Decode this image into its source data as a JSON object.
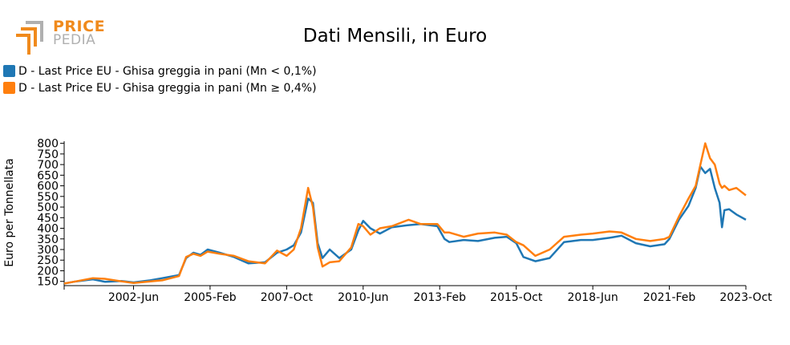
{
  "logo": {
    "line1": "PRICE",
    "line2": "PEDIA"
  },
  "colors": {
    "series1": "#1f77b4",
    "series2": "#ff7f0e",
    "logo_orange": "#f08a1c",
    "logo_grey": "#b0b0b0"
  },
  "chart_data": {
    "type": "line",
    "title": "Dati Mensili, in Euro",
    "xlabel": "",
    "ylabel": "Euro per Tonnellata",
    "ylim": [
      130,
      810
    ],
    "yticks": [
      150,
      200,
      250,
      300,
      350,
      400,
      450,
      500,
      550,
      600,
      650,
      700,
      750,
      800
    ],
    "xlim": [
      "2000-01",
      "2023-10"
    ],
    "xticks": [
      "2002-Jun",
      "2005-Feb",
      "2007-Oct",
      "2010-Jun",
      "2013-Feb",
      "2015-Oct",
      "2018-Jun",
      "2021-Feb",
      "2023-Oct"
    ],
    "grid": false,
    "legend_position": "top-left",
    "series": [
      {
        "name": "D - Last Price EU - Ghisa greggia in pani (Mn < 0,1%)",
        "points": [
          [
            "2000-01",
            140
          ],
          [
            "2000-06",
            150
          ],
          [
            "2001-01",
            160
          ],
          [
            "2001-06",
            148
          ],
          [
            "2002-01",
            152
          ],
          [
            "2002-06",
            145
          ],
          [
            "2003-01",
            155
          ],
          [
            "2003-06",
            165
          ],
          [
            "2004-01",
            180
          ],
          [
            "2004-04",
            260
          ],
          [
            "2004-07",
            285
          ],
          [
            "2004-10",
            275
          ],
          [
            "2005-01",
            300
          ],
          [
            "2005-06",
            285
          ],
          [
            "2005-12",
            265
          ],
          [
            "2006-06",
            235
          ],
          [
            "2007-01",
            240
          ],
          [
            "2007-06",
            285
          ],
          [
            "2007-10",
            300
          ],
          [
            "2008-01",
            320
          ],
          [
            "2008-04",
            380
          ],
          [
            "2008-07",
            540
          ],
          [
            "2008-09",
            520
          ],
          [
            "2008-11",
            330
          ],
          [
            "2009-01",
            260
          ],
          [
            "2009-04",
            300
          ],
          [
            "2009-08",
            260
          ],
          [
            "2010-01",
            300
          ],
          [
            "2010-04",
            390
          ],
          [
            "2010-06",
            435
          ],
          [
            "2010-09",
            400
          ],
          [
            "2011-01",
            375
          ],
          [
            "2011-06",
            405
          ],
          [
            "2012-01",
            415
          ],
          [
            "2012-06",
            420
          ],
          [
            "2013-01",
            410
          ],
          [
            "2013-04",
            350
          ],
          [
            "2013-06",
            335
          ],
          [
            "2013-12",
            345
          ],
          [
            "2014-06",
            340
          ],
          [
            "2015-01",
            355
          ],
          [
            "2015-06",
            360
          ],
          [
            "2015-10",
            330
          ],
          [
            "2016-01",
            265
          ],
          [
            "2016-06",
            245
          ],
          [
            "2016-12",
            260
          ],
          [
            "2017-06",
            335
          ],
          [
            "2018-01",
            345
          ],
          [
            "2018-06",
            345
          ],
          [
            "2019-01",
            355
          ],
          [
            "2019-06",
            365
          ],
          [
            "2019-12",
            330
          ],
          [
            "2020-06",
            315
          ],
          [
            "2020-12",
            325
          ],
          [
            "2021-02",
            350
          ],
          [
            "2021-06",
            440
          ],
          [
            "2021-10",
            505
          ],
          [
            "2022-01",
            590
          ],
          [
            "2022-03",
            690
          ],
          [
            "2022-05",
            660
          ],
          [
            "2022-07",
            680
          ],
          [
            "2022-09",
            590
          ],
          [
            "2022-11",
            520
          ],
          [
            "2022-12",
            405
          ],
          [
            "2023-01",
            485
          ],
          [
            "2023-03",
            490
          ],
          [
            "2023-06",
            465
          ],
          [
            "2023-10",
            440
          ]
        ]
      },
      {
        "name": "D - Last Price EU - Ghisa greggia in pani (Mn ≥ 0,4%)",
        "points": [
          [
            "2000-01",
            140
          ],
          [
            "2000-06",
            150
          ],
          [
            "2001-01",
            165
          ],
          [
            "2001-06",
            162
          ],
          [
            "2002-01",
            150
          ],
          [
            "2002-06",
            142
          ],
          [
            "2003-01",
            150
          ],
          [
            "2003-06",
            155
          ],
          [
            "2004-01",
            175
          ],
          [
            "2004-04",
            265
          ],
          [
            "2004-07",
            280
          ],
          [
            "2004-10",
            270
          ],
          [
            "2005-01",
            290
          ],
          [
            "2005-06",
            280
          ],
          [
            "2005-12",
            270
          ],
          [
            "2006-06",
            245
          ],
          [
            "2007-01",
            235
          ],
          [
            "2007-06",
            295
          ],
          [
            "2007-10",
            270
          ],
          [
            "2008-01",
            300
          ],
          [
            "2008-04",
            400
          ],
          [
            "2008-07",
            590
          ],
          [
            "2008-09",
            500
          ],
          [
            "2008-11",
            310
          ],
          [
            "2009-01",
            220
          ],
          [
            "2009-04",
            240
          ],
          [
            "2009-08",
            245
          ],
          [
            "2010-01",
            310
          ],
          [
            "2010-04",
            420
          ],
          [
            "2010-06",
            410
          ],
          [
            "2010-09",
            370
          ],
          [
            "2011-01",
            400
          ],
          [
            "2011-06",
            410
          ],
          [
            "2012-01",
            440
          ],
          [
            "2012-06",
            420
          ],
          [
            "2013-01",
            420
          ],
          [
            "2013-04",
            380
          ],
          [
            "2013-06",
            380
          ],
          [
            "2013-12",
            360
          ],
          [
            "2014-06",
            375
          ],
          [
            "2015-01",
            380
          ],
          [
            "2015-06",
            370
          ],
          [
            "2015-10",
            335
          ],
          [
            "2016-01",
            320
          ],
          [
            "2016-06",
            270
          ],
          [
            "2016-12",
            300
          ],
          [
            "2017-06",
            360
          ],
          [
            "2018-01",
            370
          ],
          [
            "2018-06",
            375
          ],
          [
            "2019-01",
            385
          ],
          [
            "2019-06",
            380
          ],
          [
            "2019-12",
            350
          ],
          [
            "2020-06",
            340
          ],
          [
            "2020-12",
            350
          ],
          [
            "2021-02",
            360
          ],
          [
            "2021-06",
            455
          ],
          [
            "2021-10",
            540
          ],
          [
            "2022-01",
            600
          ],
          [
            "2022-03",
            700
          ],
          [
            "2022-05",
            800
          ],
          [
            "2022-07",
            730
          ],
          [
            "2022-09",
            700
          ],
          [
            "2022-11",
            610
          ],
          [
            "2022-12",
            590
          ],
          [
            "2023-01",
            600
          ],
          [
            "2023-03",
            580
          ],
          [
            "2023-06",
            590
          ],
          [
            "2023-10",
            555
          ]
        ]
      }
    ]
  }
}
